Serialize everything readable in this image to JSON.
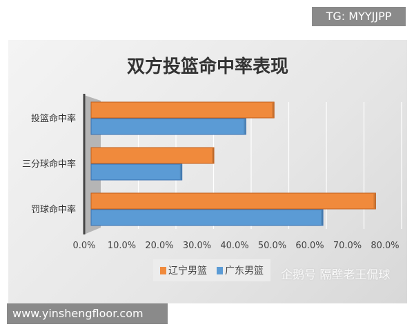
{
  "chart_data": {
    "type": "bar",
    "orientation": "horizontal",
    "title": "双方投篮命中率表现",
    "categories": [
      "投篮命中率",
      "三分球命中率",
      "罚球命中率"
    ],
    "series": [
      {
        "name": "辽宁男篮",
        "color": "#f08a3c",
        "values": [
          50.5,
          34.5,
          77.5
        ]
      },
      {
        "name": "广东男篮",
        "color": "#5b9bd5",
        "values": [
          43.0,
          26.0,
          63.5
        ]
      }
    ],
    "xticks": [
      "0.0%",
      "10.0%",
      "20.0%",
      "30.0%",
      "40.0%",
      "50.0%",
      "60.0%",
      "70.0%",
      "80.0%"
    ],
    "xlim": [
      0,
      80
    ],
    "grid": true,
    "legend": "bottom"
  },
  "watermark": "企鹅号 隔壁老王侃球",
  "tg_label": "TG: MYYJJPP",
  "site_label": "www.yinshengfloor.com"
}
